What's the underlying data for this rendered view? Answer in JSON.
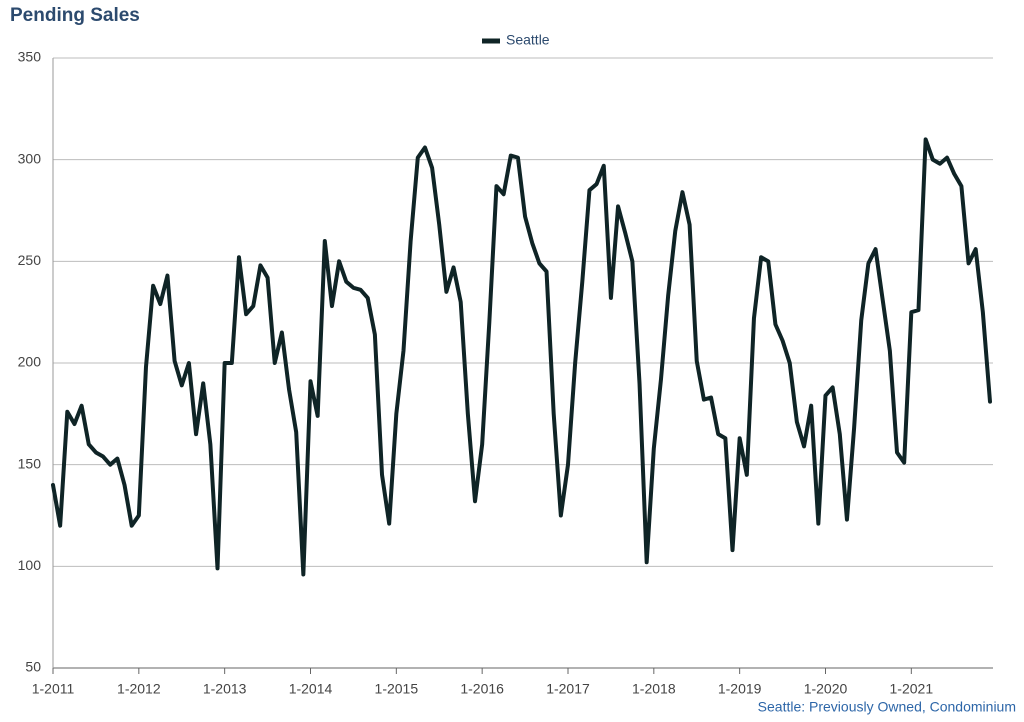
{
  "chart_data": {
    "type": "line",
    "title": "Pending Sales",
    "footnote": "Seattle: Previously Owned, Condominium",
    "categories": [
      "1-2011",
      null,
      null,
      null,
      null,
      null,
      null,
      null,
      null,
      null,
      null,
      null,
      "1-2012",
      null,
      null,
      null,
      null,
      null,
      null,
      null,
      null,
      null,
      null,
      null,
      "1-2013",
      null,
      null,
      null,
      null,
      null,
      null,
      null,
      null,
      null,
      null,
      null,
      "1-2014",
      null,
      null,
      null,
      null,
      null,
      null,
      null,
      null,
      null,
      null,
      null,
      "1-2015",
      null,
      null,
      null,
      null,
      null,
      null,
      null,
      null,
      null,
      null,
      null,
      "1-2016",
      null,
      null,
      null,
      null,
      null,
      null,
      null,
      null,
      null,
      null,
      null,
      "1-2017",
      null,
      null,
      null,
      null,
      null,
      null,
      null,
      null,
      null,
      null,
      null,
      "1-2018",
      null,
      null,
      null,
      null,
      null,
      null,
      null,
      null,
      null,
      null,
      null,
      "1-2019",
      null,
      null,
      null,
      null,
      null,
      null,
      null,
      null,
      null,
      null,
      null,
      "1-2020",
      null,
      null,
      null,
      null,
      null,
      null,
      null,
      null,
      null,
      null,
      null,
      "1-2021",
      null,
      null,
      null,
      null,
      null,
      null,
      null,
      null,
      null,
      null,
      null
    ],
    "series": [
      {
        "name": "Seattle",
        "color": "#0f2426",
        "values": [
          140,
          120,
          176,
          170,
          179,
          160,
          156,
          154,
          150,
          153,
          140,
          120,
          125,
          198,
          238,
          229,
          243,
          201,
          189,
          200,
          165,
          190,
          160,
          99,
          200,
          200,
          252,
          224,
          228,
          248,
          242,
          200,
          215,
          187,
          166,
          96,
          191,
          174,
          260,
          228,
          250,
          240,
          237,
          236,
          232,
          214,
          145,
          121,
          175,
          206,
          260,
          301,
          306,
          296,
          268,
          235,
          247,
          230,
          175,
          132,
          160,
          220,
          287,
          283,
          302,
          301,
          272,
          259,
          249,
          245,
          175,
          125,
          150,
          200,
          240,
          285,
          288,
          297,
          232,
          277,
          264,
          250,
          190,
          102,
          158,
          192,
          233,
          265,
          284,
          268,
          201,
          182,
          183,
          165,
          163,
          108,
          163,
          145,
          222,
          252,
          250,
          219,
          211,
          200,
          171,
          159,
          179,
          121,
          184,
          188,
          165,
          123,
          168,
          221,
          249,
          256,
          231,
          206,
          156,
          151,
          225,
          226,
          310,
          300,
          298,
          301,
          293,
          287,
          249,
          256,
          225,
          181
        ]
      }
    ],
    "ylim": [
      50,
      350
    ],
    "yticks": [
      50,
      100,
      150,
      200,
      250,
      300,
      350
    ],
    "grid": true
  }
}
